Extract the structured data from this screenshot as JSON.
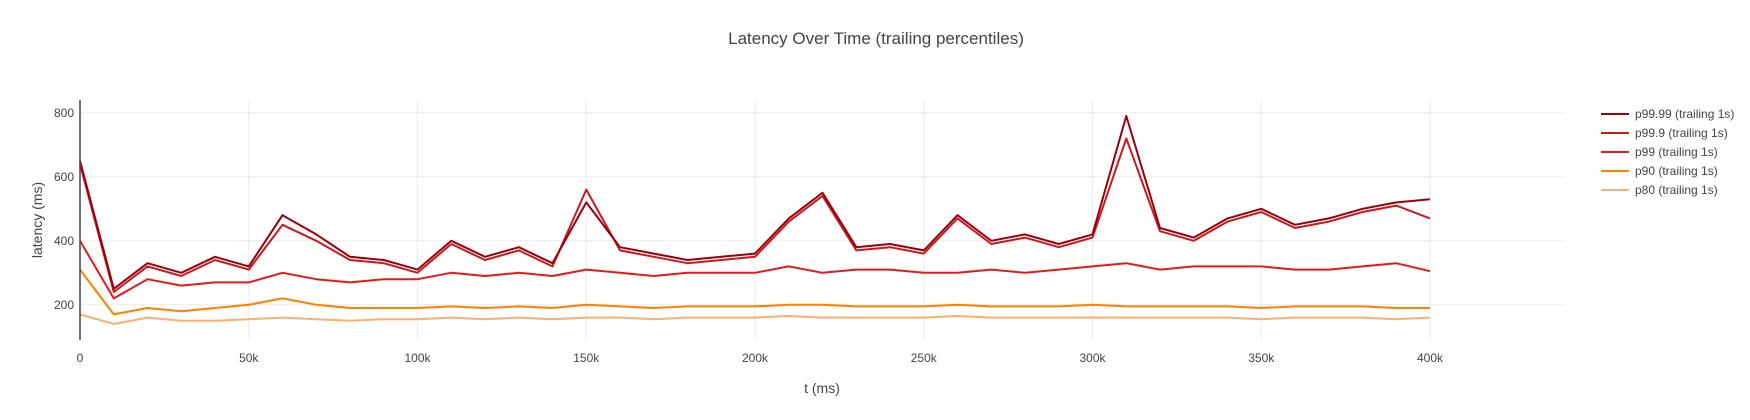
{
  "chart_data": {
    "type": "line",
    "title": "Latency Over Time (trailing percentiles)",
    "xlabel": "t (ms)",
    "ylabel": "latency (ms)",
    "xlim": [
      0,
      440000
    ],
    "ylim": [
      90,
      840
    ],
    "x_ticks": [
      {
        "value": 0,
        "label": "0"
      },
      {
        "value": 50000,
        "label": "50k"
      },
      {
        "value": 100000,
        "label": "100k"
      },
      {
        "value": 150000,
        "label": "150k"
      },
      {
        "value": 200000,
        "label": "200k"
      },
      {
        "value": 250000,
        "label": "250k"
      },
      {
        "value": 300000,
        "label": "300k"
      },
      {
        "value": 350000,
        "label": "350k"
      },
      {
        "value": 400000,
        "label": "400k"
      }
    ],
    "y_ticks": [
      {
        "value": 200,
        "label": "200"
      },
      {
        "value": 400,
        "label": "400"
      },
      {
        "value": 600,
        "label": "600"
      },
      {
        "value": 800,
        "label": "800"
      }
    ],
    "grid": true,
    "legend_position": "right",
    "x": [
      0,
      10000,
      20000,
      30000,
      40000,
      50000,
      60000,
      70000,
      80000,
      90000,
      100000,
      110000,
      120000,
      130000,
      140000,
      150000,
      160000,
      170000,
      180000,
      190000,
      200000,
      210000,
      220000,
      230000,
      240000,
      250000,
      260000,
      270000,
      280000,
      290000,
      300000,
      310000,
      320000,
      330000,
      340000,
      350000,
      360000,
      370000,
      380000,
      390000,
      400000
    ],
    "series": [
      {
        "name": "p99.99 (trailing 1s)",
        "color": "#99000d",
        "values": [
          650,
          250,
          330,
          300,
          350,
          320,
          480,
          420,
          350,
          340,
          310,
          400,
          350,
          380,
          330,
          520,
          380,
          360,
          340,
          350,
          360,
          470,
          550,
          380,
          390,
          370,
          480,
          400,
          420,
          390,
          420,
          790,
          440,
          410,
          470,
          500,
          450,
          470,
          500,
          520,
          530
        ]
      },
      {
        "name": "p99.9 (trailing 1s)",
        "color": "#cb181d",
        "values": [
          640,
          240,
          320,
          290,
          340,
          310,
          450,
          400,
          340,
          330,
          300,
          390,
          340,
          370,
          320,
          560,
          370,
          350,
          330,
          340,
          350,
          460,
          540,
          370,
          380,
          360,
          470,
          390,
          410,
          380,
          410,
          720,
          430,
          400,
          460,
          490,
          440,
          460,
          490,
          510,
          470
        ]
      },
      {
        "name": "p99 (trailing 1s)",
        "color": "#e31a1c",
        "values": [
          400,
          220,
          280,
          260,
          270,
          270,
          300,
          280,
          270,
          280,
          280,
          300,
          290,
          300,
          290,
          310,
          300,
          290,
          300,
          300,
          300,
          320,
          300,
          310,
          310,
          300,
          300,
          310,
          300,
          310,
          320,
          330,
          310,
          320,
          320,
          320,
          310,
          310,
          320,
          330,
          305
        ]
      },
      {
        "name": "p90 (trailing 1s)",
        "color": "#ff7f00",
        "values": [
          310,
          170,
          190,
          180,
          190,
          200,
          220,
          200,
          190,
          190,
          190,
          195,
          190,
          195,
          190,
          200,
          195,
          190,
          195,
          195,
          195,
          200,
          200,
          195,
          195,
          195,
          200,
          195,
          195,
          195,
          200,
          195,
          195,
          195,
          195,
          190,
          195,
          195,
          195,
          190,
          190
        ]
      },
      {
        "name": "p80 (trailing 1s)",
        "color": "#fdae6b",
        "values": [
          170,
          140,
          160,
          150,
          150,
          155,
          160,
          155,
          150,
          155,
          155,
          160,
          155,
          160,
          155,
          160,
          160,
          155,
          160,
          160,
          160,
          165,
          160,
          160,
          160,
          160,
          165,
          160,
          160,
          160,
          160,
          160,
          160,
          160,
          160,
          155,
          160,
          160,
          160,
          155,
          160
        ]
      }
    ]
  }
}
